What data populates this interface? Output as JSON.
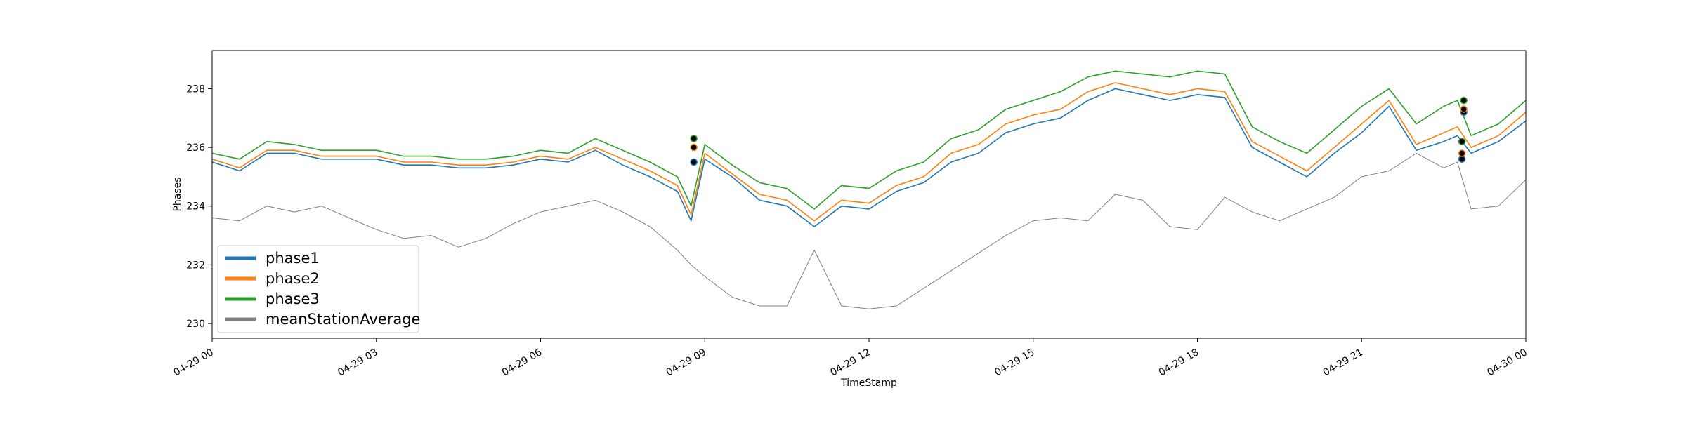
{
  "chart_data": {
    "type": "line",
    "title": "",
    "xlabel": "TimeStamp",
    "ylabel": "Phases",
    "xlim": [
      "2024-04-29 00:00",
      "2024-04-30 00:00"
    ],
    "ylim": [
      229.5,
      239.3
    ],
    "x_tick_labels": [
      "04-29 00",
      "04-29 03",
      "04-29 06",
      "04-29 09",
      "04-29 12",
      "04-29 15",
      "04-29 18",
      "04-29 21",
      "04-30 00"
    ],
    "y_tick_labels": [
      "230",
      "232",
      "234",
      "236",
      "238"
    ],
    "grid": false,
    "legend_position": "lower-left",
    "colors": {
      "phase1": "#1f77b4",
      "phase2": "#ff7f0e",
      "phase3": "#2ca02c",
      "meanStationAverage": "#808080"
    },
    "series": [
      {
        "name": "phase1",
        "color": "#1f77b4",
        "x": [
          "00:00",
          "00:30",
          "01:00",
          "01:30",
          "02:00",
          "02:30",
          "03:00",
          "03:30",
          "04:00",
          "04:30",
          "05:00",
          "05:30",
          "06:00",
          "06:30",
          "07:00",
          "07:30",
          "08:00",
          "08:30",
          "08:45",
          "09:00",
          "09:30",
          "10:00",
          "10:30",
          "11:00",
          "11:30",
          "12:00",
          "12:30",
          "13:00",
          "13:30",
          "14:00",
          "14:30",
          "15:00",
          "15:30",
          "16:00",
          "16:30",
          "17:00",
          "17:30",
          "18:00",
          "18:30",
          "19:00",
          "19:30",
          "20:00",
          "20:30",
          "21:00",
          "21:30",
          "22:00",
          "22:30",
          "22:45",
          "23:00",
          "23:30",
          "24:00"
        ],
        "values": [
          235.5,
          235.2,
          235.8,
          235.8,
          235.6,
          235.6,
          235.6,
          235.4,
          235.4,
          235.3,
          235.3,
          235.4,
          235.6,
          235.5,
          235.9,
          235.4,
          235.0,
          234.5,
          233.5,
          235.6,
          235.0,
          234.2,
          234.0,
          233.3,
          234.0,
          233.9,
          234.5,
          234.8,
          235.5,
          235.8,
          236.5,
          236.8,
          237.0,
          237.6,
          238.0,
          237.8,
          237.6,
          237.8,
          237.7,
          236.0,
          235.5,
          235.0,
          235.8,
          236.5,
          237.4,
          235.9,
          236.2,
          236.4,
          235.8,
          236.2,
          236.9
        ]
      },
      {
        "name": "phase2",
        "color": "#ff7f0e",
        "x": [
          "00:00",
          "00:30",
          "01:00",
          "01:30",
          "02:00",
          "02:30",
          "03:00",
          "03:30",
          "04:00",
          "04:30",
          "05:00",
          "05:30",
          "06:00",
          "06:30",
          "07:00",
          "07:30",
          "08:00",
          "08:30",
          "08:45",
          "09:00",
          "09:30",
          "10:00",
          "10:30",
          "11:00",
          "11:30",
          "12:00",
          "12:30",
          "13:00",
          "13:30",
          "14:00",
          "14:30",
          "15:00",
          "15:30",
          "16:00",
          "16:30",
          "17:00",
          "17:30",
          "18:00",
          "18:30",
          "19:00",
          "19:30",
          "20:00",
          "20:30",
          "21:00",
          "21:30",
          "22:00",
          "22:30",
          "22:45",
          "23:00",
          "23:30",
          "24:00"
        ],
        "values": [
          235.6,
          235.3,
          235.9,
          235.9,
          235.7,
          235.7,
          235.7,
          235.5,
          235.5,
          235.4,
          235.4,
          235.5,
          235.7,
          235.6,
          236.0,
          235.6,
          235.2,
          234.7,
          233.7,
          235.8,
          235.1,
          234.4,
          234.2,
          233.5,
          234.2,
          234.1,
          234.7,
          235.0,
          235.8,
          236.1,
          236.8,
          237.1,
          237.3,
          237.9,
          238.2,
          238.0,
          237.8,
          238.0,
          237.9,
          236.2,
          235.7,
          235.2,
          236.0,
          236.8,
          237.6,
          236.1,
          236.5,
          236.7,
          236.0,
          236.4,
          237.2
        ]
      },
      {
        "name": "phase3",
        "color": "#2ca02c",
        "x": [
          "00:00",
          "00:30",
          "01:00",
          "01:30",
          "02:00",
          "02:30",
          "03:00",
          "03:30",
          "04:00",
          "04:30",
          "05:00",
          "05:30",
          "06:00",
          "06:30",
          "07:00",
          "07:30",
          "08:00",
          "08:30",
          "08:45",
          "09:00",
          "09:30",
          "10:00",
          "10:30",
          "11:00",
          "11:30",
          "12:00",
          "12:30",
          "13:00",
          "13:30",
          "14:00",
          "14:30",
          "15:00",
          "15:30",
          "16:00",
          "16:30",
          "17:00",
          "17:30",
          "18:00",
          "18:30",
          "19:00",
          "19:30",
          "20:00",
          "20:30",
          "21:00",
          "21:30",
          "22:00",
          "22:30",
          "22:45",
          "23:00",
          "23:30",
          "24:00"
        ],
        "values": [
          235.8,
          235.6,
          236.2,
          236.1,
          235.9,
          235.9,
          235.9,
          235.7,
          235.7,
          235.6,
          235.6,
          235.7,
          235.9,
          235.8,
          236.3,
          235.9,
          235.5,
          235.0,
          234.0,
          236.1,
          235.4,
          234.8,
          234.6,
          233.9,
          234.7,
          234.6,
          235.2,
          235.5,
          236.3,
          236.6,
          237.3,
          237.6,
          237.9,
          238.4,
          238.6,
          238.5,
          238.4,
          238.6,
          238.5,
          236.7,
          236.2,
          235.8,
          236.6,
          237.4,
          238.0,
          236.8,
          237.4,
          237.6,
          236.4,
          236.8,
          237.6
        ]
      },
      {
        "name": "meanStationAverage",
        "color": "#808080",
        "x": [
          "00:00",
          "00:30",
          "01:00",
          "01:30",
          "02:00",
          "02:30",
          "03:00",
          "03:30",
          "04:00",
          "04:30",
          "05:00",
          "05:30",
          "06:00",
          "06:30",
          "07:00",
          "07:30",
          "08:00",
          "08:30",
          "08:45",
          "09:00",
          "09:30",
          "10:00",
          "10:30",
          "11:00",
          "11:30",
          "12:00",
          "12:30",
          "13:00",
          "13:30",
          "14:00",
          "14:30",
          "15:00",
          "15:30",
          "16:00",
          "16:30",
          "17:00",
          "17:30",
          "18:00",
          "18:30",
          "19:00",
          "19:30",
          "20:00",
          "20:30",
          "21:00",
          "21:30",
          "22:00",
          "22:30",
          "22:45",
          "23:00",
          "23:30",
          "24:00"
        ],
        "values": [
          233.6,
          233.5,
          234.0,
          233.8,
          234.0,
          233.6,
          233.2,
          232.9,
          233.0,
          232.6,
          232.9,
          233.4,
          233.8,
          234.0,
          234.2,
          233.8,
          233.3,
          232.5,
          232.0,
          231.6,
          230.9,
          230.6,
          230.6,
          232.5,
          230.6,
          230.5,
          230.6,
          231.2,
          231.8,
          232.4,
          233.0,
          233.5,
          233.6,
          233.5,
          234.4,
          234.2,
          233.3,
          233.2,
          234.3,
          233.8,
          233.5,
          233.9,
          234.3,
          235.0,
          235.2,
          235.8,
          235.3,
          235.5,
          233.9,
          234.0,
          234.9
        ]
      }
    ],
    "markers": [
      {
        "series": "phase1",
        "x": "08:48",
        "value": 235.5
      },
      {
        "series": "phase2",
        "x": "08:48",
        "value": 236.0
      },
      {
        "series": "phase3",
        "x": "08:48",
        "value": 236.3
      },
      {
        "series": "phase1",
        "x": "22:50",
        "value": 235.6
      },
      {
        "series": "phase2",
        "x": "22:50",
        "value": 235.8
      },
      {
        "series": "phase3",
        "x": "22:50",
        "value": 236.2
      },
      {
        "series": "phase1",
        "x": "22:52",
        "value": 237.2
      },
      {
        "series": "phase2",
        "x": "22:52",
        "value": 237.3
      },
      {
        "series": "phase3",
        "x": "22:52",
        "value": 237.6
      }
    ]
  }
}
